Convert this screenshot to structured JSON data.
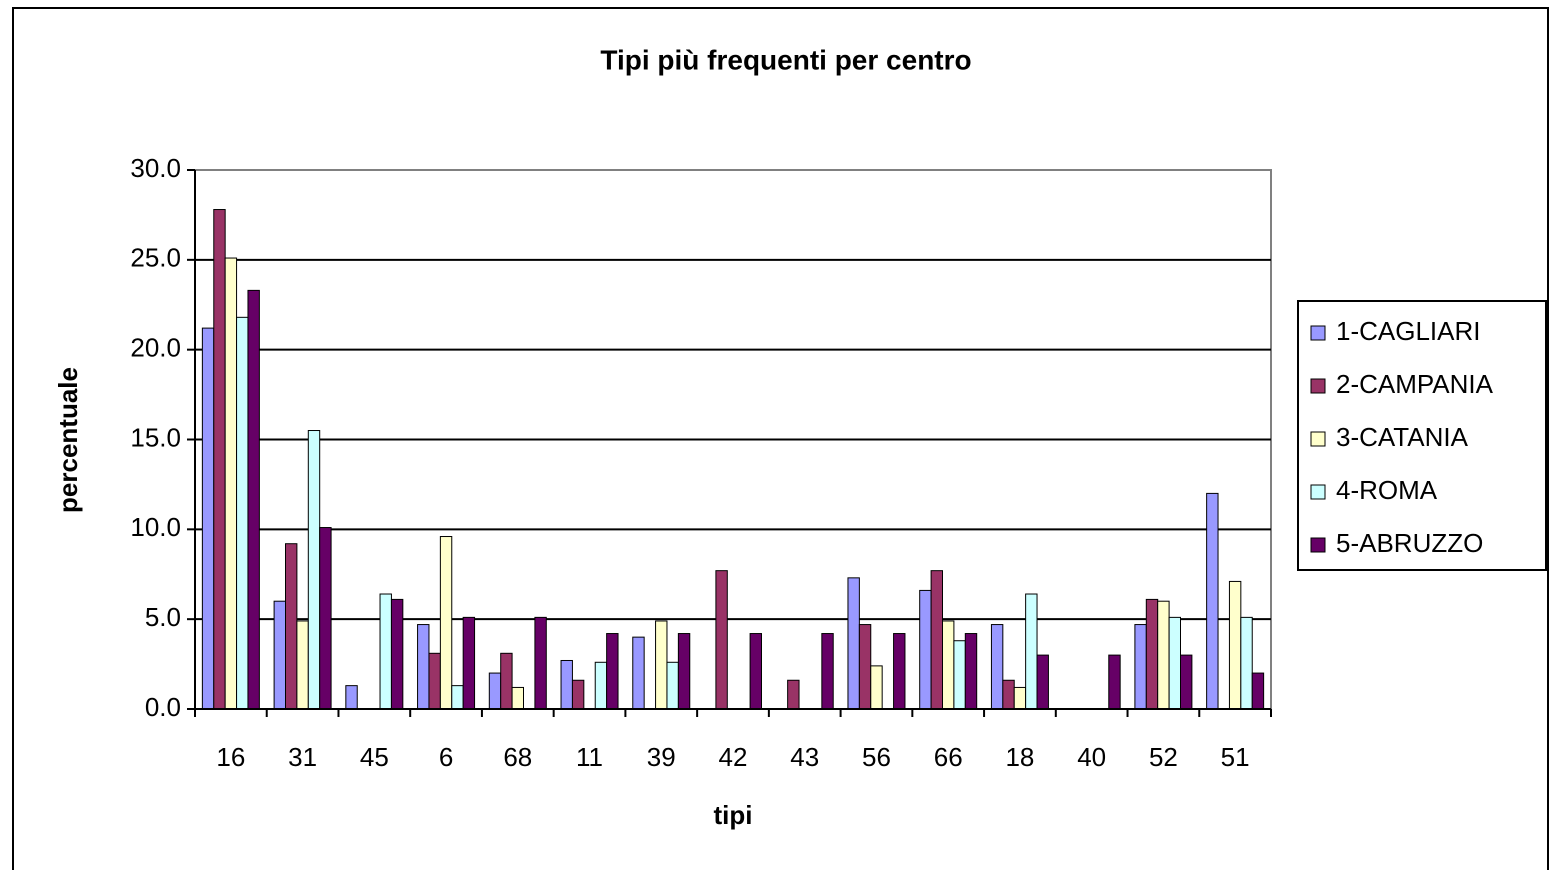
{
  "chart_data": {
    "type": "bar",
    "title": "Tipi più frequenti per centro",
    "x_label": "tipi",
    "y_label": "percentuale",
    "categories": [
      "16",
      "31",
      "45",
      "6",
      "68",
      "11",
      "39",
      "42",
      "43",
      "56",
      "66",
      "18",
      "40",
      "52",
      "51"
    ],
    "series": [
      {
        "name": "1-CAGLIARI",
        "color": "#9999ff",
        "values": [
          21.2,
          6.0,
          1.3,
          4.7,
          2.0,
          2.7,
          4.0,
          0,
          0,
          7.3,
          6.6,
          4.7,
          0,
          4.7,
          12.0
        ]
      },
      {
        "name": "2-CAMPANIA",
        "color": "#993366",
        "values": [
          27.8,
          9.2,
          0,
          3.1,
          3.1,
          1.6,
          0,
          7.7,
          1.6,
          4.7,
          7.7,
          1.6,
          0,
          6.1,
          0
        ]
      },
      {
        "name": "3-CATANIA",
        "color": "#ffffcc",
        "values": [
          25.1,
          4.9,
          0,
          9.6,
          1.2,
          0,
          4.9,
          0,
          0,
          2.4,
          4.9,
          1.2,
          0,
          6.0,
          7.1
        ]
      },
      {
        "name": "4-ROMA",
        "color": "#ccffff",
        "values": [
          21.8,
          15.5,
          6.4,
          1.3,
          0,
          2.6,
          2.6,
          0,
          0,
          0,
          3.8,
          6.4,
          0,
          5.1,
          5.1
        ]
      },
      {
        "name": "5-ABRUZZO",
        "color": "#660066",
        "values": [
          23.3,
          10.1,
          6.1,
          5.1,
          5.1,
          4.2,
          4.2,
          4.2,
          4.2,
          4.2,
          4.2,
          3.0,
          3.0,
          3.0,
          2.0
        ]
      }
    ],
    "ylim": [
      0,
      30
    ],
    "yticks": [
      {
        "value": 0,
        "label": "0.0"
      },
      {
        "value": 5,
        "label": "5.0"
      },
      {
        "value": 10,
        "label": "10.0"
      },
      {
        "value": 15,
        "label": "15.0"
      },
      {
        "value": 20,
        "label": "20.0"
      },
      {
        "value": 25,
        "label": "25.0"
      },
      {
        "value": 30,
        "label": "30.0"
      }
    ],
    "grid": true,
    "legend": "right"
  }
}
